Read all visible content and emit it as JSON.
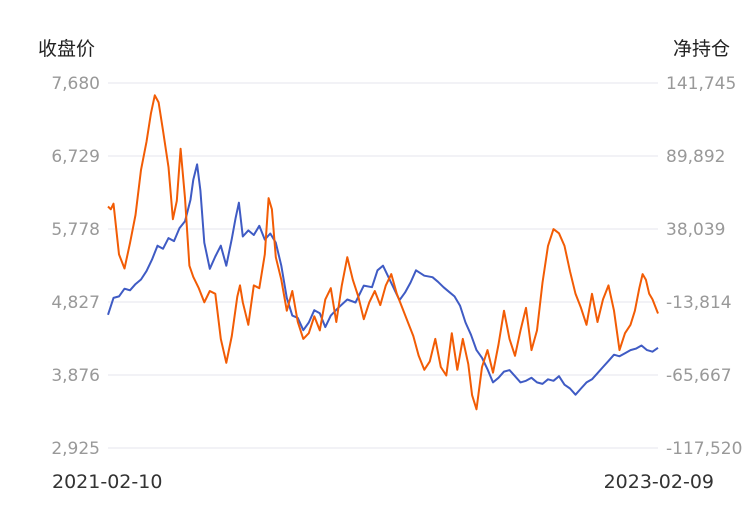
{
  "chart_data": {
    "type": "line",
    "left_axis_title": "收盘价",
    "right_axis_title": "净持仓",
    "left_ticks": [
      "7,680",
      "6,729",
      "5,778",
      "4,827",
      "3,876",
      "2,925"
    ],
    "right_ticks": [
      "141,745",
      "89,892",
      "38,039",
      "-13,814",
      "-65,667",
      "-117,520"
    ],
    "left_range": [
      2925,
      7680
    ],
    "right_range": [
      -117520,
      141745
    ],
    "x_start_label": "2021-02-10",
    "x_end_label": "2023-02-09",
    "grid": true,
    "series": [
      {
        "axis": "left",
        "color": "#3f5bc4",
        "points": [
          [
            0.0,
            4660
          ],
          [
            0.01,
            4880
          ],
          [
            0.02,
            4900
          ],
          [
            0.03,
            5000
          ],
          [
            0.04,
            4980
          ],
          [
            0.05,
            5060
          ],
          [
            0.06,
            5120
          ],
          [
            0.07,
            5230
          ],
          [
            0.08,
            5380
          ],
          [
            0.09,
            5560
          ],
          [
            0.1,
            5520
          ],
          [
            0.11,
            5660
          ],
          [
            0.12,
            5620
          ],
          [
            0.13,
            5790
          ],
          [
            0.14,
            5880
          ],
          [
            0.15,
            6160
          ],
          [
            0.155,
            6420
          ],
          [
            0.162,
            6620
          ],
          [
            0.168,
            6280
          ],
          [
            0.175,
            5600
          ],
          [
            0.185,
            5260
          ],
          [
            0.195,
            5420
          ],
          [
            0.205,
            5560
          ],
          [
            0.215,
            5300
          ],
          [
            0.225,
            5650
          ],
          [
            0.232,
            5920
          ],
          [
            0.238,
            6120
          ],
          [
            0.245,
            5680
          ],
          [
            0.255,
            5760
          ],
          [
            0.265,
            5700
          ],
          [
            0.275,
            5820
          ],
          [
            0.285,
            5640
          ],
          [
            0.295,
            5720
          ],
          [
            0.305,
            5600
          ],
          [
            0.315,
            5300
          ],
          [
            0.325,
            4880
          ],
          [
            0.335,
            4650
          ],
          [
            0.345,
            4620
          ],
          [
            0.355,
            4460
          ],
          [
            0.365,
            4560
          ],
          [
            0.375,
            4720
          ],
          [
            0.385,
            4680
          ],
          [
            0.395,
            4500
          ],
          [
            0.405,
            4650
          ],
          [
            0.42,
            4760
          ],
          [
            0.435,
            4860
          ],
          [
            0.45,
            4820
          ],
          [
            0.465,
            5040
          ],
          [
            0.48,
            5020
          ],
          [
            0.49,
            5240
          ],
          [
            0.5,
            5300
          ],
          [
            0.51,
            5150
          ],
          [
            0.52,
            5000
          ],
          [
            0.53,
            4850
          ],
          [
            0.54,
            4950
          ],
          [
            0.55,
            5080
          ],
          [
            0.56,
            5240
          ],
          [
            0.575,
            5170
          ],
          [
            0.59,
            5150
          ],
          [
            0.6,
            5090
          ],
          [
            0.61,
            5020
          ],
          [
            0.62,
            4960
          ],
          [
            0.63,
            4900
          ],
          [
            0.64,
            4780
          ],
          [
            0.65,
            4560
          ],
          [
            0.66,
            4400
          ],
          [
            0.67,
            4200
          ],
          [
            0.68,
            4100
          ],
          [
            0.69,
            3950
          ],
          [
            0.7,
            3780
          ],
          [
            0.71,
            3840
          ],
          [
            0.72,
            3920
          ],
          [
            0.73,
            3940
          ],
          [
            0.74,
            3860
          ],
          [
            0.75,
            3780
          ],
          [
            0.76,
            3800
          ],
          [
            0.77,
            3840
          ],
          [
            0.78,
            3780
          ],
          [
            0.79,
            3760
          ],
          [
            0.8,
            3820
          ],
          [
            0.81,
            3800
          ],
          [
            0.82,
            3860
          ],
          [
            0.83,
            3750
          ],
          [
            0.84,
            3700
          ],
          [
            0.85,
            3620
          ],
          [
            0.86,
            3700
          ],
          [
            0.87,
            3780
          ],
          [
            0.88,
            3820
          ],
          [
            0.89,
            3900
          ],
          [
            0.9,
            3980
          ],
          [
            0.91,
            4060
          ],
          [
            0.92,
            4140
          ],
          [
            0.93,
            4120
          ],
          [
            0.94,
            4160
          ],
          [
            0.95,
            4200
          ],
          [
            0.96,
            4220
          ],
          [
            0.97,
            4260
          ],
          [
            0.98,
            4200
          ],
          [
            0.99,
            4180
          ],
          [
            1.0,
            4230
          ]
        ]
      },
      {
        "axis": "right",
        "color": "#f25c05",
        "points": [
          [
            0.0,
            54000
          ],
          [
            0.005,
            52000
          ],
          [
            0.01,
            56000
          ],
          [
            0.02,
            20000
          ],
          [
            0.03,
            10000
          ],
          [
            0.04,
            28000
          ],
          [
            0.05,
            48000
          ],
          [
            0.06,
            80000
          ],
          [
            0.07,
            100000
          ],
          [
            0.078,
            120000
          ],
          [
            0.085,
            133000
          ],
          [
            0.092,
            128000
          ],
          [
            0.1,
            108000
          ],
          [
            0.11,
            82000
          ],
          [
            0.118,
            45000
          ],
          [
            0.125,
            58000
          ],
          [
            0.132,
            95000
          ],
          [
            0.14,
            60000
          ],
          [
            0.148,
            12000
          ],
          [
            0.155,
            4000
          ],
          [
            0.165,
            -4000
          ],
          [
            0.175,
            -14000
          ],
          [
            0.185,
            -6000
          ],
          [
            0.195,
            -8000
          ],
          [
            0.205,
            -40000
          ],
          [
            0.215,
            -57000
          ],
          [
            0.225,
            -38000
          ],
          [
            0.235,
            -10000
          ],
          [
            0.24,
            -2000
          ],
          [
            0.245,
            -14000
          ],
          [
            0.255,
            -30000
          ],
          [
            0.265,
            -2000
          ],
          [
            0.275,
            -4000
          ],
          [
            0.285,
            20000
          ],
          [
            0.292,
            60000
          ],
          [
            0.298,
            52000
          ],
          [
            0.305,
            18000
          ],
          [
            0.315,
            2000
          ],
          [
            0.325,
            -20000
          ],
          [
            0.335,
            -6000
          ],
          [
            0.345,
            -28000
          ],
          [
            0.355,
            -40000
          ],
          [
            0.365,
            -36000
          ],
          [
            0.375,
            -24000
          ],
          [
            0.385,
            -34000
          ],
          [
            0.395,
            -12000
          ],
          [
            0.405,
            -4000
          ],
          [
            0.415,
            -28000
          ],
          [
            0.425,
            -2000
          ],
          [
            0.435,
            18000
          ],
          [
            0.445,
            2000
          ],
          [
            0.455,
            -10000
          ],
          [
            0.465,
            -26000
          ],
          [
            0.475,
            -14000
          ],
          [
            0.485,
            -6000
          ],
          [
            0.495,
            -16000
          ],
          [
            0.505,
            -2000
          ],
          [
            0.515,
            6000
          ],
          [
            0.525,
            -8000
          ],
          [
            0.535,
            -18000
          ],
          [
            0.545,
            -28000
          ],
          [
            0.555,
            -38000
          ],
          [
            0.565,
            -52000
          ],
          [
            0.575,
            -62000
          ],
          [
            0.585,
            -56000
          ],
          [
            0.595,
            -40000
          ],
          [
            0.605,
            -60000
          ],
          [
            0.615,
            -66000
          ],
          [
            0.625,
            -36000
          ],
          [
            0.635,
            -62000
          ],
          [
            0.645,
            -40000
          ],
          [
            0.655,
            -58000
          ],
          [
            0.662,
            -80000
          ],
          [
            0.67,
            -90000
          ],
          [
            0.68,
            -60000
          ],
          [
            0.69,
            -48000
          ],
          [
            0.7,
            -64000
          ],
          [
            0.71,
            -44000
          ],
          [
            0.72,
            -20000
          ],
          [
            0.73,
            -40000
          ],
          [
            0.74,
            -52000
          ],
          [
            0.75,
            -34000
          ],
          [
            0.76,
            -18000
          ],
          [
            0.77,
            -48000
          ],
          [
            0.78,
            -34000
          ],
          [
            0.79,
            0
          ],
          [
            0.8,
            26000
          ],
          [
            0.81,
            38000
          ],
          [
            0.82,
            35000
          ],
          [
            0.83,
            26000
          ],
          [
            0.84,
            8000
          ],
          [
            0.85,
            -8000
          ],
          [
            0.86,
            -18000
          ],
          [
            0.87,
            -30000
          ],
          [
            0.88,
            -8000
          ],
          [
            0.89,
            -28000
          ],
          [
            0.9,
            -12000
          ],
          [
            0.91,
            -2000
          ],
          [
            0.92,
            -20000
          ],
          [
            0.93,
            -48000
          ],
          [
            0.94,
            -36000
          ],
          [
            0.95,
            -30000
          ],
          [
            0.958,
            -20000
          ],
          [
            0.966,
            -4000
          ],
          [
            0.972,
            6000
          ],
          [
            0.978,
            2000
          ],
          [
            0.984,
            -8000
          ],
          [
            0.99,
            -12000
          ],
          [
            1.0,
            -22000
          ]
        ]
      }
    ]
  }
}
